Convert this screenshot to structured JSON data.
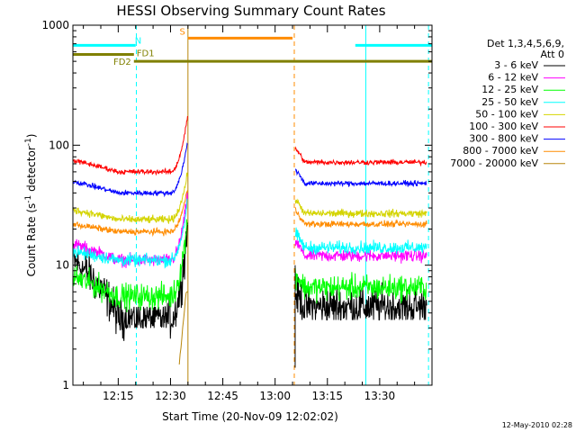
{
  "chart_data": {
    "type": "line",
    "title": "HESSI Observing Summary Count Rates",
    "xlabel": "Start Time (20-Nov-09 12:02:02)",
    "ylabel": "Count Rate (s",
    "ylabel_sup1": "-1",
    "ylabel_mid": " detector",
    "ylabel_sup2": "-1",
    "ylabel_end": ")",
    "yscale": "log",
    "xlim_minutes": [
      0,
      103
    ],
    "ylim": [
      1,
      1000
    ],
    "x_ticks": [
      {
        "label": "12:15",
        "t": 13
      },
      {
        "label": "12:30",
        "t": 28
      },
      {
        "label": "12:45",
        "t": 43
      },
      {
        "label": "13:00",
        "t": 58
      },
      {
        "label": "13:15",
        "t": 73
      },
      {
        "label": "13:30",
        "t": 88
      }
    ],
    "y_ticks": [
      {
        "label": "1",
        "v": 1
      },
      {
        "label": "10",
        "v": 10
      },
      {
        "label": "100",
        "v": 100
      },
      {
        "label": "1000",
        "v": 1000
      }
    ],
    "legend": {
      "header": [
        "Det 1,3,4,5,6,9,",
        "Att 0"
      ],
      "placement": "right"
    },
    "gap": [
      33,
      63.5
    ],
    "series": [
      {
        "name": "3 - 6 keV",
        "color": "#000000",
        "pre": 11,
        "dip": 3.6,
        "post": 4.5,
        "noise": 0.32,
        "flare": 22
      },
      {
        "name": "6 - 12 keV",
        "color": "#ff00ff",
        "pre": 15,
        "dip": 11,
        "post": 12,
        "noise": 0.1,
        "flare": 40
      },
      {
        "name": "12 - 25 keV",
        "color": "#00ff00",
        "pre": 8,
        "dip": 5.5,
        "post": 6.5,
        "noise": 0.2,
        "flare": 25
      },
      {
        "name": "25 - 50 keV",
        "color": "#00ffff",
        "pre": 13,
        "dip": 11,
        "post": 14,
        "noise": 0.1,
        "flare": 35
      },
      {
        "name": "50 - 100 keV",
        "color": "#d4d400",
        "pre": 29,
        "dip": 24,
        "post": 27,
        "noise": 0.06,
        "flare": 60
      },
      {
        "name": "100 - 300 keV",
        "color": "#ff0000",
        "pre": 75,
        "dip": 60,
        "post": 72,
        "noise": 0.04,
        "flare": 180
      },
      {
        "name": "300 - 800 keV",
        "color": "#0000ff",
        "pre": 50,
        "dip": 40,
        "post": 48,
        "noise": 0.04,
        "flare": 110
      },
      {
        "name": "800 - 7000 keV",
        "color": "#ff8c00",
        "pre": 22,
        "dip": 19,
        "post": 22,
        "noise": 0.05,
        "flare": 45
      },
      {
        "name": "7000 - 20000 keV",
        "color": "#b8860b",
        "pre": null,
        "dip": null,
        "post": null,
        "noise": 0,
        "flare": null
      }
    ],
    "flags": [
      {
        "label": "N",
        "color": "#00ffff",
        "value": 680,
        "segments": [
          [
            0,
            18
          ],
          [
            81,
            103
          ]
        ]
      },
      {
        "label": "S",
        "color": "#ff8c00",
        "value": 780,
        "segments": [
          [
            33,
            63
          ]
        ]
      },
      {
        "label": "FD1",
        "color": "#808000",
        "value": 570,
        "segments": [
          [
            0,
            17.5
          ]
        ]
      },
      {
        "label": "FD2",
        "color": "#808000",
        "value": 500,
        "segments": [
          [
            17.5,
            103
          ]
        ]
      }
    ],
    "markers": [
      {
        "t": 18.2,
        "color": "#00ffff",
        "style": "dashed"
      },
      {
        "t": 33,
        "color": "#b8860b",
        "style": "solid"
      },
      {
        "t": 63.5,
        "color": "#ff8c00",
        "style": "dashed"
      },
      {
        "t": 84,
        "color": "#00ffff",
        "style": "solid"
      },
      {
        "t": 102,
        "color": "#00ffff",
        "style": "dashed"
      }
    ]
  },
  "footer": {
    "timestamp": "12-May-2010 02:28"
  }
}
